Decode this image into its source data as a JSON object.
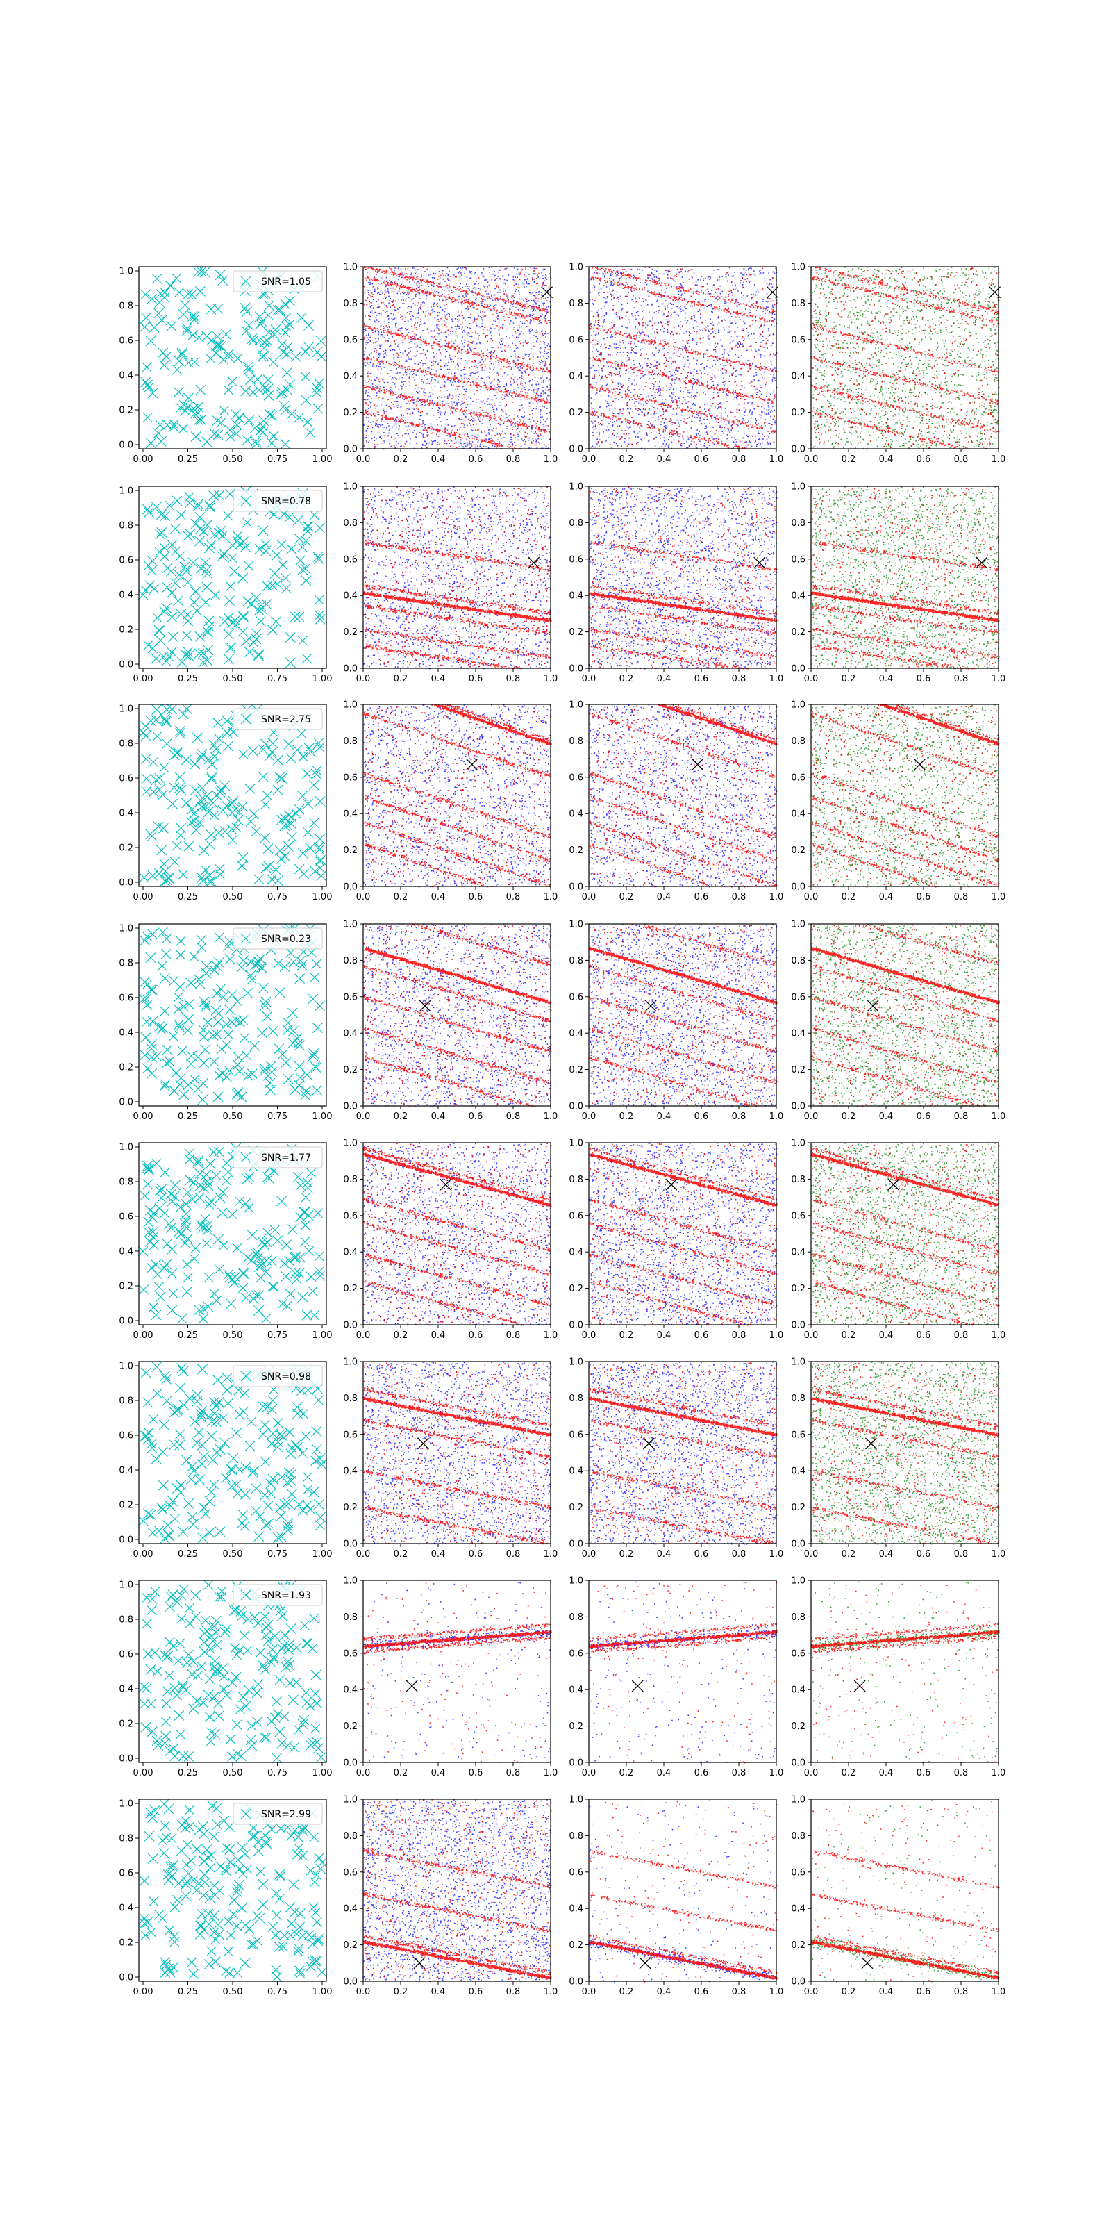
{
  "figure": {
    "rows": 8,
    "cols": 4,
    "background": "#ffffff",
    "colors": {
      "marker": "#00bfbf",
      "red": "#ff0000",
      "blue": "#0000ff",
      "green": "#008000",
      "truth_marker": "#000000",
      "axis": "#000000"
    }
  },
  "chart_data": [
    {
      "type": "scatter",
      "description_panel": "left column: randomly placed markers with SNR legend; right three columns: dense point clouds with diagonal red bands and an x marker at the source position",
      "xlim": [
        0,
        1
      ],
      "ylim": [
        0,
        1
      ],
      "left_xticks": [
        "0.00",
        "0.25",
        "0.50",
        "0.75",
        "1.00"
      ],
      "left_yticks": [
        "0.0",
        "0.2",
        "0.4",
        "0.6",
        "0.8",
        "1.0"
      ],
      "right_xticks": [
        "0.0",
        "0.2",
        "0.4",
        "0.6",
        "0.8",
        "1.0"
      ],
      "right_yticks": [
        "0.0",
        "0.2",
        "0.4",
        "0.6",
        "0.8",
        "1.0"
      ],
      "grid": false,
      "legend_placement": "upper right",
      "rows": [
        {
          "snr_label": "SNR=1.05",
          "source": [
            0.98,
            0.86
          ],
          "slope": -0.25,
          "bands": [
            0.88,
            0.82,
            0.55,
            0.38,
            0.22,
            0.08
          ],
          "strong_band": null,
          "panel_bg": [
            "mixed",
            "mixed",
            "mixed"
          ]
        },
        {
          "snr_label": "SNR=0.78",
          "source": [
            0.91,
            0.58
          ],
          "slope": -0.15,
          "bands": [
            0.62,
            0.38,
            0.27,
            0.14,
            0.05
          ],
          "strong_band": 0.34,
          "panel_bg": [
            "mixed",
            "mixed",
            "mixed"
          ]
        },
        {
          "snr_label": "SNR=2.75",
          "source": [
            0.58,
            0.67
          ],
          "slope": -0.35,
          "bands": [
            0.98,
            0.78,
            0.45,
            0.32,
            0.18,
            0.06
          ],
          "strong_band": 0.96,
          "panel_bg": [
            "mixed",
            "mixed",
            "mixed"
          ]
        },
        {
          "snr_label": "SNR=0.23",
          "source": [
            0.33,
            0.55
          ],
          "slope": -0.3,
          "bands": [
            0.93,
            0.62,
            0.45,
            0.28,
            0.12
          ],
          "strong_band": 0.72,
          "panel_bg": [
            "mixed",
            "mixed",
            "mixed"
          ]
        },
        {
          "snr_label": "SNR=1.77",
          "source": [
            0.44,
            0.77
          ],
          "slope": -0.28,
          "bands": [
            0.83,
            0.55,
            0.42,
            0.25,
            0.1
          ],
          "strong_band": 0.8,
          "panel_bg": [
            "mixed",
            "mixed",
            "mixed"
          ]
        },
        {
          "snr_label": "SNR=0.98",
          "source": [
            0.32,
            0.55
          ],
          "slope": -0.2,
          "bands": [
            0.75,
            0.58,
            0.3,
            0.1
          ],
          "strong_band": 0.7,
          "panel_bg": [
            "mixed",
            "mixed",
            "mixed"
          ]
        },
        {
          "snr_label": "SNR=1.93",
          "source": [
            0.26,
            0.42
          ],
          "slope": 0.08,
          "bands": [
            0.65,
            0.72
          ],
          "strong_band": 0.68,
          "panel_bg": [
            "sparse",
            "sparse",
            "sparse"
          ]
        },
        {
          "snr_label": "SNR=2.99",
          "source": [
            0.3,
            0.1
          ],
          "slope": -0.2,
          "bands": [
            0.15,
            0.38,
            0.62
          ],
          "strong_band": 0.12,
          "panel_bg": [
            "mixed",
            "sparse",
            "sparse"
          ]
        }
      ]
    }
  ]
}
